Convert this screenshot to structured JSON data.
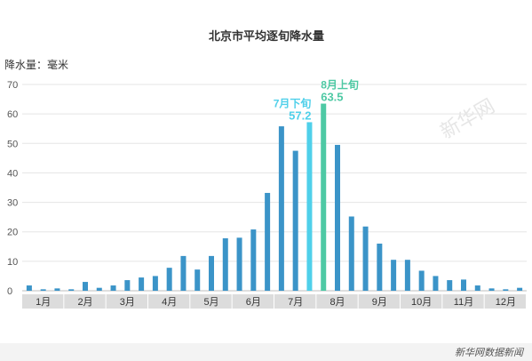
{
  "chart_data": {
    "type": "bar",
    "title": "北京市平均逐旬降水量",
    "ylabel": "降水量：毫米",
    "ylim": [
      0,
      70
    ],
    "yticks": [
      0,
      10,
      20,
      30,
      40,
      50,
      60,
      70
    ],
    "grid": true,
    "months": [
      "1月",
      "2月",
      "3月",
      "4月",
      "5月",
      "6月",
      "7月",
      "8月",
      "9月",
      "10月",
      "11月",
      "12月"
    ],
    "values": [
      1.8,
      0.5,
      0.8,
      0.5,
      3.0,
      1.0,
      1.8,
      3.6,
      4.5,
      5.0,
      7.8,
      11.8,
      7.2,
      11.8,
      17.8,
      18.0,
      20.8,
      33.2,
      55.8,
      47.5,
      57.2,
      63.5,
      49.5,
      25.2,
      21.8,
      16.0,
      10.5,
      10.5,
      6.8,
      5.0,
      3.6,
      3.8,
      1.8,
      0.8,
      0.5,
      1.0
    ],
    "default_color": "#3b94c8",
    "highlights": [
      {
        "index": 20,
        "color": "#4fd0ea",
        "label": "7月下旬",
        "value_label": "57.2"
      },
      {
        "index": 21,
        "color": "#4ec9a4",
        "label": "8月上旬",
        "value_label": "63.5"
      }
    ]
  },
  "watermark": "新华网",
  "source": "新华网数据新闻"
}
